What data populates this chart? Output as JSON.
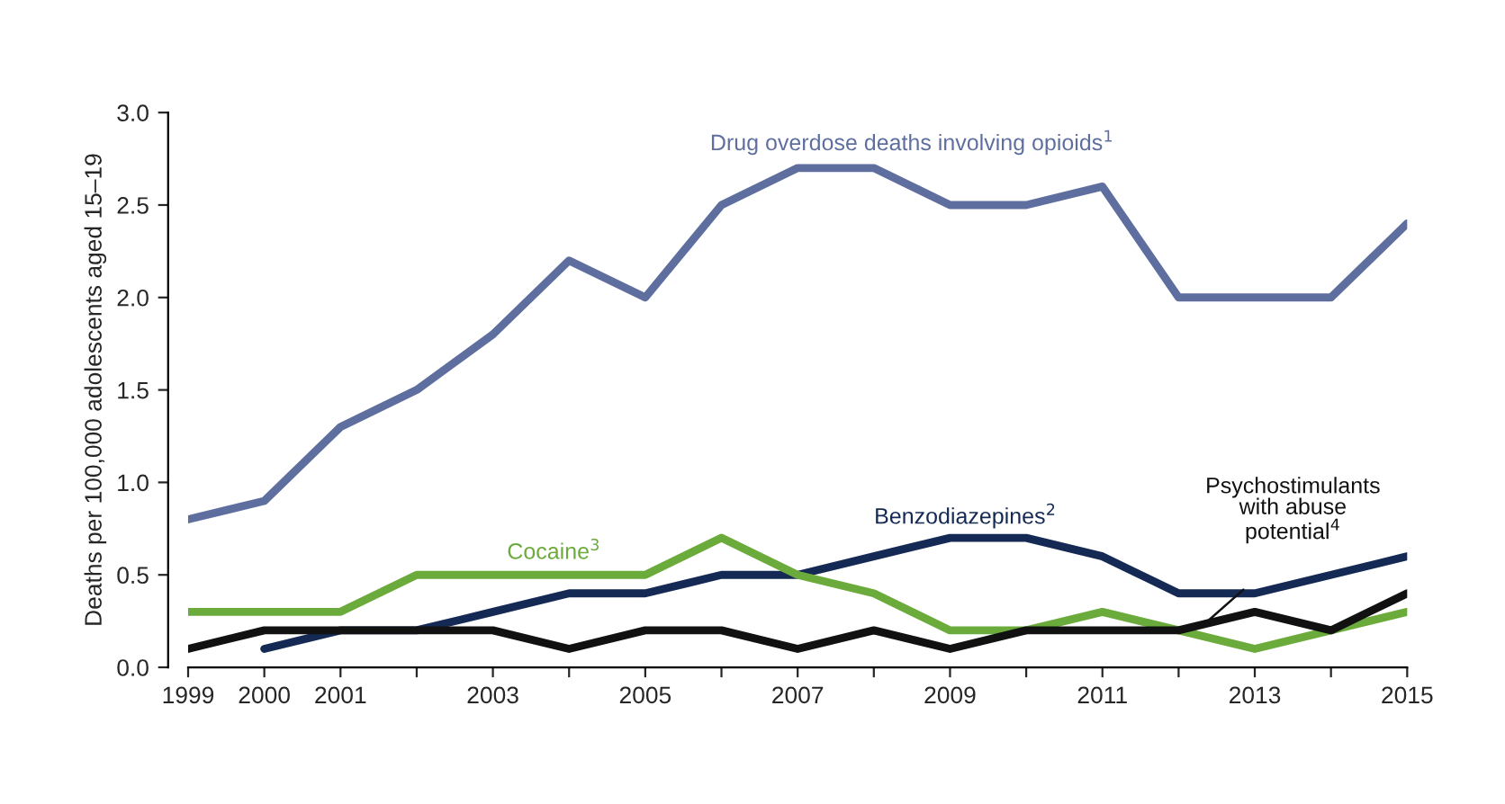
{
  "chart_data": {
    "type": "line",
    "ylabel": "Deaths per 100,000 adolescents aged 15–19",
    "x": [
      1999,
      2000,
      2001,
      2002,
      2003,
      2004,
      2005,
      2006,
      2007,
      2008,
      2009,
      2010,
      2011,
      2012,
      2013,
      2014,
      2015
    ],
    "series": [
      {
        "name": "Drug overdose deaths involving opioids$^{1}$",
        "color": "#5e6f9f",
        "values": [
          0.8,
          0.9,
          1.3,
          1.5,
          1.8,
          2.2,
          2.0,
          2.5,
          2.7,
          2.7,
          2.5,
          2.5,
          2.6,
          2.0,
          2.0,
          2.0,
          2.4
        ]
      },
      {
        "name": "Benzodiazepines$^{2}$",
        "color": "#142a55",
        "values": [
          null,
          0.1,
          0.2,
          0.2,
          0.3,
          0.4,
          0.4,
          0.5,
          0.5,
          0.6,
          0.7,
          0.7,
          0.6,
          0.4,
          0.4,
          0.5,
          0.6
        ]
      },
      {
        "name": "Cocaine$^{3}$",
        "color": "#6bab3c",
        "values": [
          0.3,
          0.3,
          0.3,
          0.5,
          0.5,
          0.5,
          0.5,
          0.7,
          0.5,
          0.4,
          0.2,
          0.2,
          0.3,
          0.2,
          0.1,
          0.2,
          0.3
        ]
      },
      {
        "name": "Psychostimulants\nwith abuse\npotential$^{4}$",
        "color": "#111111",
        "values": [
          0.1,
          0.2,
          0.2,
          0.2,
          0.2,
          0.1,
          0.2,
          0.2,
          0.1,
          0.2,
          0.1,
          0.2,
          0.2,
          0.2,
          0.3,
          0.2,
          0.4
        ]
      }
    ],
    "xlim": [
      1999,
      2015
    ],
    "xticks": [
      1999,
      2000,
      2001,
      {
        "value": 2002,
        "label": null
      },
      2003,
      {
        "value": 2004,
        "label": null
      },
      2005,
      {
        "value": 2006,
        "label": null
      },
      2007,
      {
        "value": 2008,
        "label": null
      },
      2009,
      {
        "value": 2010,
        "label": null
      },
      2011,
      {
        "value": 2012,
        "label": null
      },
      2013,
      {
        "value": 2014,
        "label": null
      },
      2015
    ],
    "ylim": [
      0,
      3.0
    ],
    "yticks": [
      {
        "value": 0,
        "label": "0.0"
      },
      0.5,
      {
        "value": 1,
        "label": "1.0"
      },
      1.5,
      {
        "value": 2,
        "label": "2.0"
      },
      2.5,
      {
        "value": 3,
        "label": "3.0"
      }
    ],
    "grid": false,
    "legend": false,
    "marker": "none",
    "line_style": "solid"
  }
}
